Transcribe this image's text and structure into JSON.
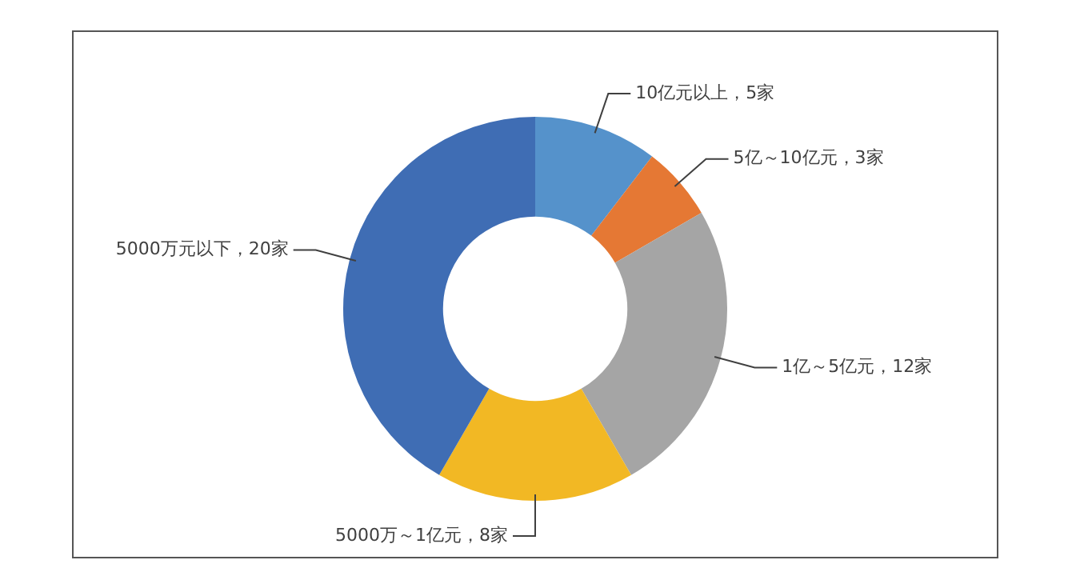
{
  "chart_data": {
    "type": "donut",
    "categories": [
      "10亿元以上，5家",
      "5亿～10亿元，3家",
      "1亿～5亿元，12家",
      "5000万～1亿元，8家",
      "5000万元以下，20家"
    ],
    "values": [
      5,
      3,
      12,
      8,
      20
    ],
    "colors": [
      "#5592cb",
      "#e57834",
      "#a5a5a5",
      "#f2b824",
      "#3f6db4"
    ]
  }
}
